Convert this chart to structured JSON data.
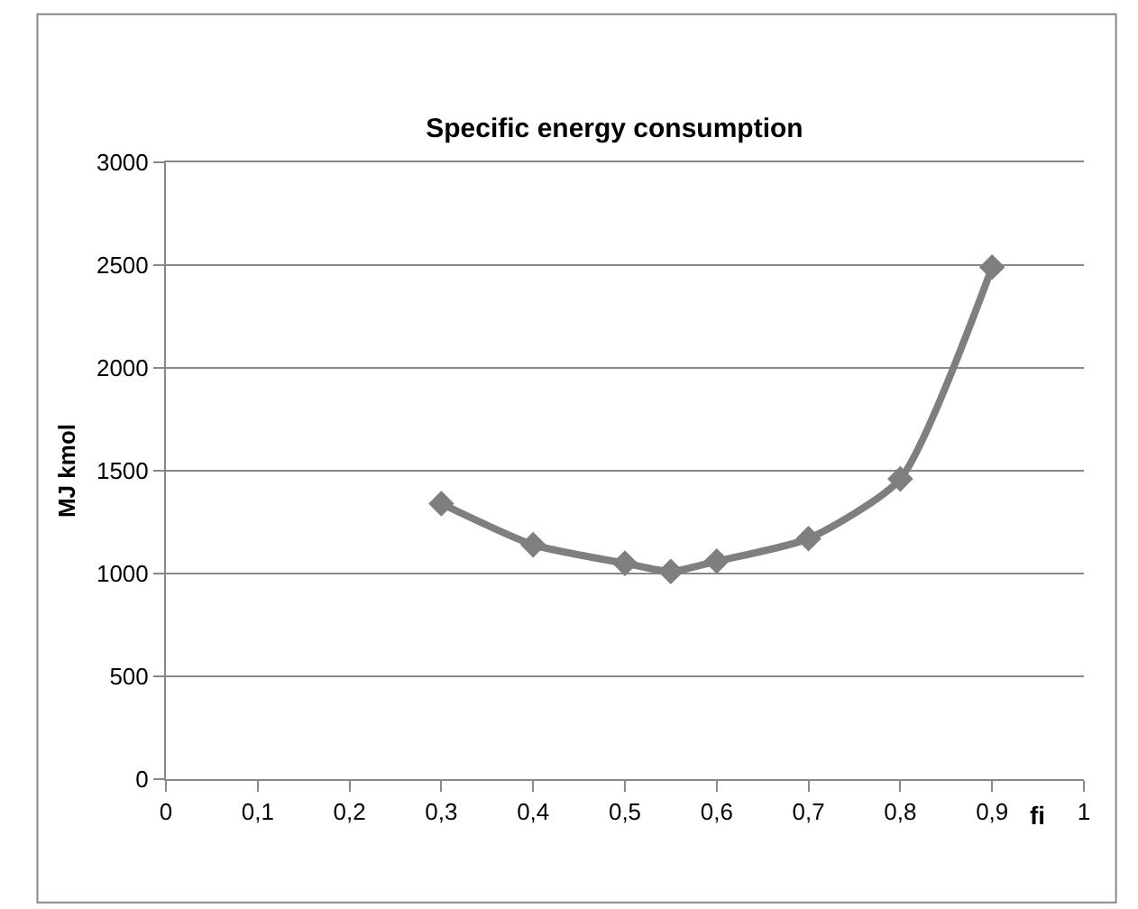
{
  "chart_data": {
    "type": "line",
    "title": "Specific energy consumption",
    "xlabel": "fi",
    "ylabel": "MJ kmol",
    "x": [
      0.3,
      0.4,
      0.5,
      0.55,
      0.6,
      0.7,
      0.8,
      0.9
    ],
    "series": [
      {
        "color": "#7f7f7f",
        "values": [
          1340,
          1140,
          1050,
          1010,
          1060,
          1170,
          1460,
          2490
        ]
      }
    ],
    "xlim": [
      0,
      1
    ],
    "xticks": [
      0,
      {
        "value": 0.1,
        "label": "0,1"
      },
      {
        "value": 0.2,
        "label": "0,2"
      },
      {
        "value": 0.3,
        "label": "0,3"
      },
      {
        "value": 0.4,
        "label": "0,4"
      },
      {
        "value": 0.5,
        "label": "0,5"
      },
      {
        "value": 0.6,
        "label": "0,6"
      },
      {
        "value": 0.7,
        "label": "0,7"
      },
      {
        "value": 0.8,
        "label": "0,8"
      },
      {
        "value": 0.9,
        "label": "0,9"
      },
      1
    ],
    "ylim": [
      0,
      3000
    ],
    "yticks": [
      0,
      500,
      1000,
      1500,
      2000,
      2500,
      3000
    ],
    "grid": "y",
    "marker": "diamond",
    "line_style": "solid"
  }
}
